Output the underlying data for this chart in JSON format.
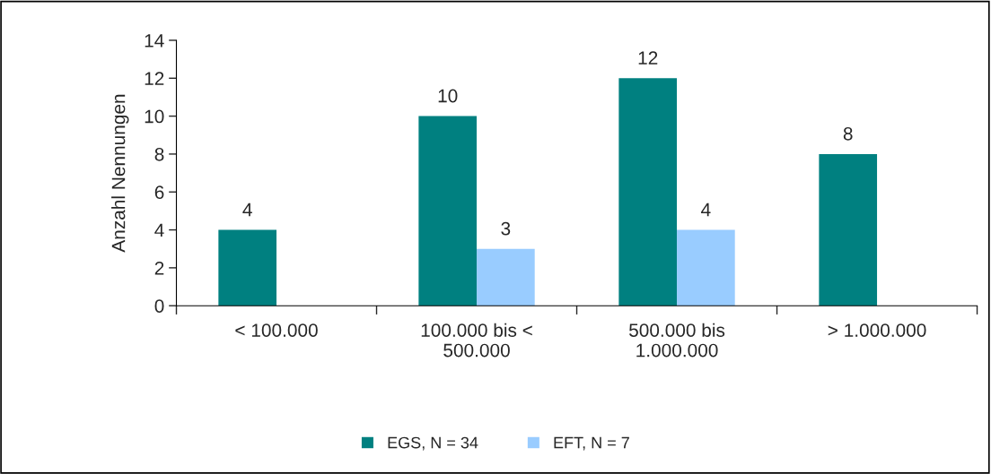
{
  "chart_data": {
    "type": "bar",
    "ylabel": "Anzahl Nennungen",
    "categories": [
      "< 100.000",
      "100.000 bis <\n500.000",
      "500.000 bis\n1.000.000",
      "> 1.000.000"
    ],
    "series": [
      {
        "name": "EGS, N = 34",
        "color": "#008080",
        "values": [
          4,
          10,
          12,
          8
        ]
      },
      {
        "name": "EFT, N = 7",
        "color": "#99ccff",
        "values": [
          null,
          3,
          4,
          null
        ]
      }
    ],
    "ylim": [
      0,
      14
    ],
    "yticks": [
      0,
      2,
      4,
      6,
      8,
      10,
      12,
      14
    ],
    "data_labels": true,
    "grid": false,
    "legend": "bottom"
  }
}
